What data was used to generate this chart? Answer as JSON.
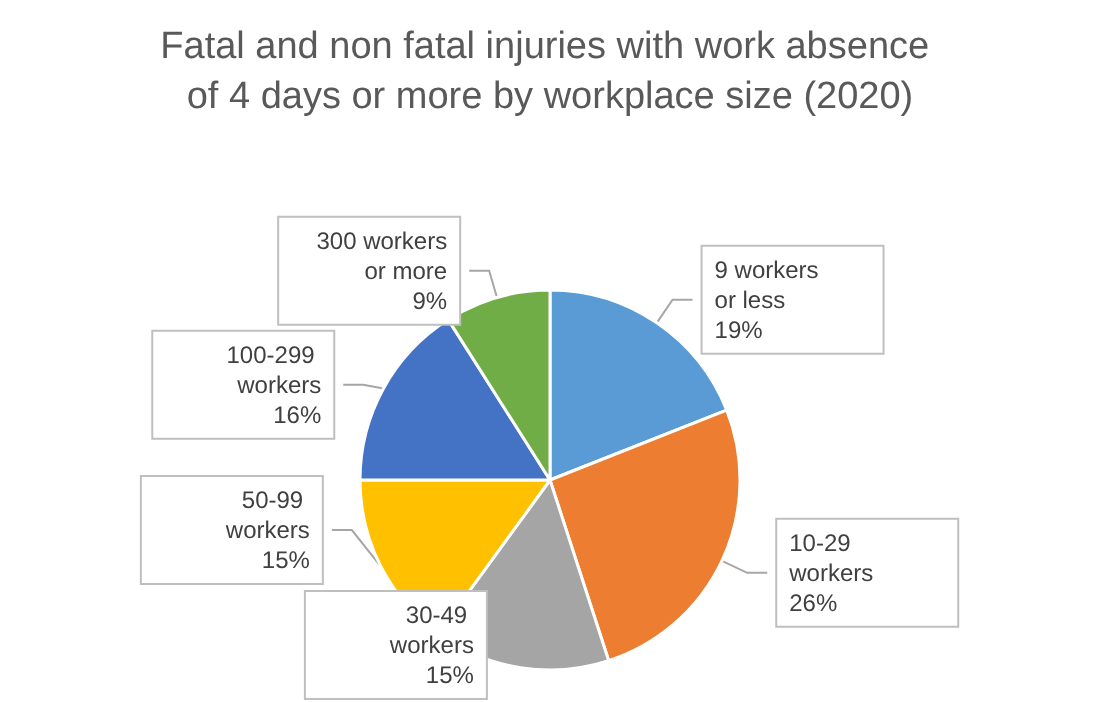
{
  "chart_data": {
    "type": "pie",
    "title": "Fatal and non fatal injuries with work absence of 4 days or more by workplace size (2020)",
    "categories": [
      "9 workers or less",
      "10-29 workers",
      "30-49 workers",
      "50-99 workers",
      "100-299 workers",
      "300 workers or more"
    ],
    "values": [
      19,
      26,
      15,
      15,
      16,
      9
    ],
    "value_labels": [
      "19%",
      "26%",
      "15%",
      "15%",
      "16%",
      "9%"
    ],
    "colors": [
      "#5b9bd5",
      "#ed7d31",
      "#a5a5a5",
      "#ffc000",
      "#4472c4",
      "#70ad47"
    ],
    "legend": false
  }
}
